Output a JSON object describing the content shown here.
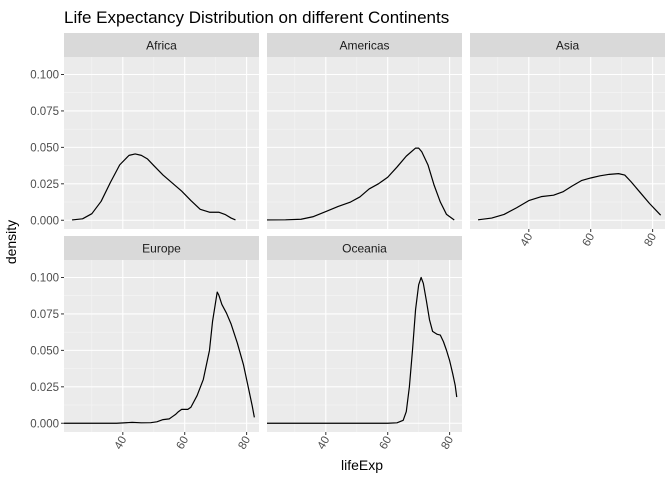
{
  "chart_data": {
    "type": "line",
    "title": "Life Expectancy Distribution on different Continents",
    "xlabel": "lifeExp",
    "ylabel": "density",
    "xlim": [
      21,
      84
    ],
    "ylim": [
      -0.006,
      0.112
    ],
    "x_ticks": [
      40,
      60,
      80
    ],
    "y_ticks": [
      0.0,
      0.025,
      0.05,
      0.075,
      0.1
    ],
    "y_tick_labels": [
      "0.000",
      "0.025",
      "0.050",
      "0.075",
      "0.100"
    ],
    "facets": [
      {
        "name": "Africa",
        "points": [
          [
            23.6,
            0.0002
          ],
          [
            27,
            0.001
          ],
          [
            30,
            0.0045
          ],
          [
            33,
            0.013
          ],
          [
            36,
            0.026
          ],
          [
            39,
            0.038
          ],
          [
            42,
            0.0445
          ],
          [
            44,
            0.0455
          ],
          [
            46,
            0.0445
          ],
          [
            48,
            0.042
          ],
          [
            50,
            0.0375
          ],
          [
            53,
            0.031
          ],
          [
            56,
            0.0255
          ],
          [
            59,
            0.02
          ],
          [
            62,
            0.0135
          ],
          [
            65,
            0.0075
          ],
          [
            68,
            0.0055
          ],
          [
            71,
            0.0055
          ],
          [
            73,
            0.004
          ],
          [
            75,
            0.0015
          ],
          [
            76.4,
            0.0002
          ]
        ]
      },
      {
        "name": "Americas",
        "points": [
          [
            21,
            0.0002
          ],
          [
            27,
            0.0003
          ],
          [
            32,
            0.0007
          ],
          [
            36,
            0.0025
          ],
          [
            40,
            0.006
          ],
          [
            44,
            0.0095
          ],
          [
            48,
            0.0125
          ],
          [
            51,
            0.016
          ],
          [
            54,
            0.0215
          ],
          [
            57,
            0.025
          ],
          [
            60,
            0.0295
          ],
          [
            63,
            0.0365
          ],
          [
            66,
            0.044
          ],
          [
            69,
            0.0495
          ],
          [
            70,
            0.0495
          ],
          [
            71,
            0.047
          ],
          [
            73,
            0.038
          ],
          [
            75,
            0.024
          ],
          [
            77,
            0.0125
          ],
          [
            79,
            0.004
          ],
          [
            81.5,
            0.0002
          ]
        ]
      },
      {
        "name": "Asia",
        "points": [
          [
            23.6,
            0.0003
          ],
          [
            28,
            0.0015
          ],
          [
            32,
            0.004
          ],
          [
            36,
            0.0085
          ],
          [
            40,
            0.0135
          ],
          [
            44,
            0.0162
          ],
          [
            48,
            0.0172
          ],
          [
            51,
            0.0195
          ],
          [
            54,
            0.0235
          ],
          [
            57,
            0.0272
          ],
          [
            60,
            0.029
          ],
          [
            63,
            0.0305
          ],
          [
            66,
            0.0315
          ],
          [
            69,
            0.032
          ],
          [
            71,
            0.031
          ],
          [
            73,
            0.0265
          ],
          [
            76,
            0.019
          ],
          [
            79,
            0.0115
          ],
          [
            82.6,
            0.0035
          ]
        ]
      },
      {
        "name": "Europe",
        "points": [
          [
            21,
            0.0
          ],
          [
            38,
            0.0
          ],
          [
            43,
            0.0006
          ],
          [
            46,
            0.0003
          ],
          [
            49,
            0.0004
          ],
          [
            51,
            0.001
          ],
          [
            53,
            0.0025
          ],
          [
            55,
            0.003
          ],
          [
            56,
            0.0045
          ],
          [
            57,
            0.006
          ],
          [
            58,
            0.008
          ],
          [
            59,
            0.0095
          ],
          [
            61,
            0.0095
          ],
          [
            62,
            0.011
          ],
          [
            64,
            0.019
          ],
          [
            66,
            0.03
          ],
          [
            68,
            0.05
          ],
          [
            69,
            0.07
          ],
          [
            70.5,
            0.09
          ],
          [
            71,
            0.088
          ],
          [
            72,
            0.0815
          ],
          [
            73.5,
            0.0755
          ],
          [
            75,
            0.068
          ],
          [
            77,
            0.055
          ],
          [
            79,
            0.04
          ],
          [
            80.5,
            0.025
          ],
          [
            81.8,
            0.012
          ],
          [
            82.5,
            0.004
          ]
        ]
      },
      {
        "name": "Oceania",
        "points": [
          [
            21,
            0.0
          ],
          [
            60,
            0.0
          ],
          [
            63,
            0.0003
          ],
          [
            65,
            0.002
          ],
          [
            66,
            0.008
          ],
          [
            67,
            0.025
          ],
          [
            68,
            0.05
          ],
          [
            69,
            0.078
          ],
          [
            70,
            0.095
          ],
          [
            70.8,
            0.1
          ],
          [
            71.5,
            0.096
          ],
          [
            72.5,
            0.084
          ],
          [
            73.5,
            0.071
          ],
          [
            74.5,
            0.063
          ],
          [
            76,
            0.061
          ],
          [
            77,
            0.0605
          ],
          [
            78,
            0.056
          ],
          [
            79,
            0.05
          ],
          [
            80,
            0.043
          ],
          [
            81,
            0.034
          ],
          [
            81.8,
            0.026
          ],
          [
            82.3,
            0.018
          ]
        ]
      }
    ]
  }
}
